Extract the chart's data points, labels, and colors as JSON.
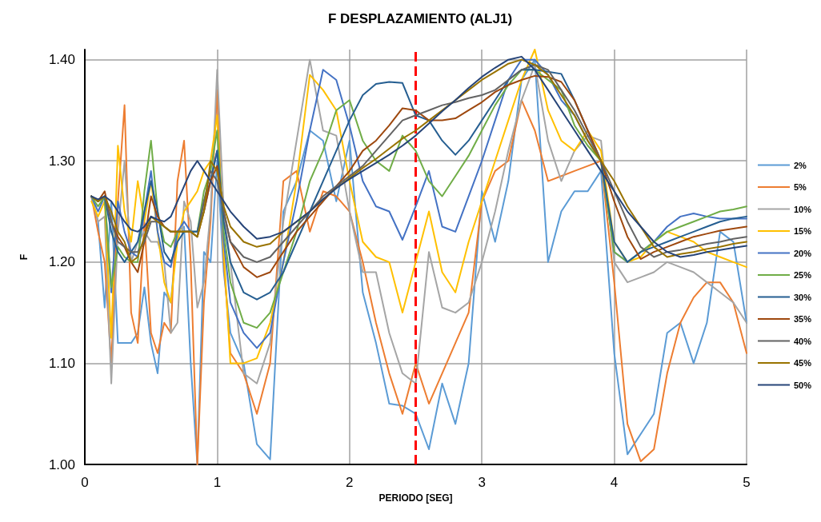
{
  "chart_data": {
    "type": "line",
    "title": "F DESPLAZAMIENTO (ALJ1)",
    "xlabel": "PERIODO [SEG]",
    "ylabel": "F",
    "x": [
      0.05,
      0.1,
      0.15,
      0.2,
      0.25,
      0.3,
      0.35,
      0.4,
      0.45,
      0.5,
      0.55,
      0.6,
      0.65,
      0.7,
      0.75,
      0.8,
      0.85,
      0.9,
      0.95,
      1.0,
      1.05,
      1.1,
      1.2,
      1.3,
      1.4,
      1.5,
      1.6,
      1.7,
      1.8,
      1.9,
      2.0,
      2.1,
      2.2,
      2.3,
      2.4,
      2.5,
      2.6,
      2.7,
      2.8,
      2.9,
      3.0,
      3.1,
      3.2,
      3.3,
      3.4,
      3.5,
      3.6,
      3.7,
      3.8,
      3.9,
      4.0,
      4.1,
      4.2,
      4.3,
      4.4,
      4.5,
      4.6,
      4.7,
      4.8,
      4.9,
      5.0
    ],
    "xlim": [
      0,
      5
    ],
    "xticks": [
      0,
      1,
      2,
      3,
      4,
      5
    ],
    "ylim": [
      1,
      1.41
    ],
    "yticks": [
      {
        "value": 1,
        "label": "1.00"
      },
      {
        "value": 1.1,
        "label": "1.10"
      },
      {
        "value": 1.2,
        "label": "1.20"
      },
      {
        "value": 1.3,
        "label": "1.30"
      },
      {
        "value": 1.4,
        "label": "1.40"
      }
    ],
    "grid": true,
    "legend": "right",
    "marker": "none",
    "line_style": "solid",
    "ref_lines": [
      {
        "axis": "x",
        "value": 2.5,
        "color": "#ff0000",
        "line_style": "dashed"
      }
    ],
    "series": [
      {
        "name": "2%",
        "color": "#5b9bd5",
        "values": [
          1.265,
          1.24,
          1.155,
          1.26,
          1.12,
          1.12,
          1.12,
          1.13,
          1.175,
          1.12,
          1.09,
          1.17,
          1.16,
          1.23,
          1.235,
          1.1,
          1.0,
          1.21,
          1.2,
          1.3,
          1.19,
          1.13,
          1.1,
          1.02,
          1.005,
          1.25,
          1.28,
          1.33,
          1.32,
          1.26,
          1.32,
          1.17,
          1.12,
          1.06,
          1.058,
          1.05,
          1.015,
          1.08,
          1.04,
          1.1,
          1.27,
          1.22,
          1.28,
          1.38,
          1.4,
          1.2,
          1.25,
          1.27,
          1.27,
          1.29,
          1.11,
          1.01,
          1.03,
          1.05,
          1.13,
          1.14,
          1.1,
          1.14,
          1.23,
          1.22,
          1.14
        ]
      },
      {
        "name": "5%",
        "color": "#ed7d31",
        "values": [
          1.265,
          1.23,
          1.2,
          1.1,
          1.26,
          1.355,
          1.15,
          1.12,
          1.24,
          1.13,
          1.11,
          1.14,
          1.13,
          1.28,
          1.32,
          1.2,
          1.0,
          1.16,
          1.24,
          1.37,
          1.2,
          1.11,
          1.09,
          1.05,
          1.1,
          1.28,
          1.29,
          1.23,
          1.27,
          1.265,
          1.25,
          1.2,
          1.14,
          1.09,
          1.05,
          1.1,
          1.06,
          1.09,
          1.12,
          1.15,
          1.26,
          1.29,
          1.3,
          1.36,
          1.33,
          1.28,
          1.285,
          1.29,
          1.295,
          1.3,
          1.18,
          1.04,
          1.003,
          1.015,
          1.09,
          1.14,
          1.165,
          1.18,
          1.18,
          1.16,
          1.11
        ]
      },
      {
        "name": "10%",
        "color": "#a5a5a5",
        "values": [
          1.265,
          1.24,
          1.245,
          1.08,
          1.23,
          1.3,
          1.2,
          1.22,
          1.23,
          1.22,
          1.22,
          1.2,
          1.13,
          1.14,
          1.26,
          1.24,
          1.155,
          1.18,
          1.25,
          1.39,
          1.25,
          1.2,
          1.09,
          1.08,
          1.12,
          1.24,
          1.32,
          1.4,
          1.33,
          1.325,
          1.25,
          1.19,
          1.19,
          1.13,
          1.09,
          1.08,
          1.21,
          1.155,
          1.15,
          1.16,
          1.2,
          1.25,
          1.31,
          1.36,
          1.395,
          1.32,
          1.28,
          1.31,
          1.325,
          1.32,
          1.2,
          1.18,
          1.185,
          1.19,
          1.2,
          1.195,
          1.19,
          1.18,
          1.17,
          1.16,
          1.14
        ]
      },
      {
        "name": "15%",
        "color": "#ffc000",
        "values": [
          1.26,
          1.245,
          1.26,
          1.125,
          1.315,
          1.25,
          1.22,
          1.28,
          1.24,
          1.28,
          1.23,
          1.18,
          1.16,
          1.22,
          1.25,
          1.26,
          1.27,
          1.29,
          1.3,
          1.345,
          1.21,
          1.1,
          1.1,
          1.105,
          1.14,
          1.2,
          1.28,
          1.385,
          1.37,
          1.35,
          1.28,
          1.22,
          1.205,
          1.2,
          1.15,
          1.2,
          1.25,
          1.19,
          1.17,
          1.22,
          1.26,
          1.3,
          1.34,
          1.38,
          1.41,
          1.35,
          1.32,
          1.31,
          1.33,
          1.31,
          1.22,
          1.2,
          1.205,
          1.22,
          1.23,
          1.225,
          1.22,
          1.21,
          1.205,
          1.2,
          1.195
        ]
      },
      {
        "name": "20%",
        "color": "#4472c4",
        "values": [
          1.265,
          1.25,
          1.265,
          1.17,
          1.26,
          1.23,
          1.21,
          1.205,
          1.25,
          1.29,
          1.23,
          1.2,
          1.195,
          1.23,
          1.24,
          1.23,
          1.23,
          1.25,
          1.28,
          1.31,
          1.22,
          1.16,
          1.13,
          1.115,
          1.13,
          1.2,
          1.26,
          1.33,
          1.39,
          1.38,
          1.335,
          1.28,
          1.255,
          1.25,
          1.222,
          1.255,
          1.29,
          1.235,
          1.23,
          1.265,
          1.3,
          1.34,
          1.38,
          1.4,
          1.4,
          1.385,
          1.36,
          1.345,
          1.32,
          1.3,
          1.21,
          1.2,
          1.21,
          1.22,
          1.235,
          1.245,
          1.248,
          1.245,
          1.243,
          1.243,
          1.243
        ]
      },
      {
        "name": "25%",
        "color": "#70ad47",
        "values": [
          1.265,
          1.255,
          1.265,
          1.175,
          1.215,
          1.205,
          1.2,
          1.2,
          1.27,
          1.32,
          1.25,
          1.22,
          1.215,
          1.23,
          1.23,
          1.23,
          1.23,
          1.27,
          1.29,
          1.33,
          1.23,
          1.18,
          1.14,
          1.135,
          1.15,
          1.19,
          1.23,
          1.28,
          1.31,
          1.35,
          1.36,
          1.32,
          1.3,
          1.29,
          1.325,
          1.31,
          1.28,
          1.265,
          1.285,
          1.305,
          1.33,
          1.355,
          1.375,
          1.39,
          1.39,
          1.38,
          1.37,
          1.335,
          1.315,
          1.3,
          1.21,
          1.2,
          1.21,
          1.22,
          1.23,
          1.235,
          1.24,
          1.245,
          1.25,
          1.252,
          1.255
        ]
      },
      {
        "name": "30%",
        "color": "#255e91",
        "values": [
          1.265,
          1.26,
          1.265,
          1.23,
          1.21,
          1.2,
          1.21,
          1.22,
          1.25,
          1.28,
          1.25,
          1.21,
          1.2,
          1.22,
          1.23,
          1.23,
          1.23,
          1.26,
          1.28,
          1.31,
          1.24,
          1.2,
          1.17,
          1.163,
          1.17,
          1.19,
          1.22,
          1.25,
          1.28,
          1.31,
          1.34,
          1.365,
          1.376,
          1.378,
          1.377,
          1.345,
          1.34,
          1.32,
          1.306,
          1.32,
          1.34,
          1.36,
          1.38,
          1.39,
          1.39,
          1.388,
          1.386,
          1.36,
          1.33,
          1.3,
          1.22,
          1.2,
          1.21,
          1.215,
          1.22,
          1.225,
          1.23,
          1.235,
          1.24,
          1.243,
          1.245
        ]
      },
      {
        "name": "35%",
        "color": "#9e480e",
        "values": [
          1.265,
          1.26,
          1.27,
          1.24,
          1.225,
          1.215,
          1.2,
          1.19,
          1.22,
          1.265,
          1.245,
          1.235,
          1.23,
          1.23,
          1.23,
          1.23,
          1.225,
          1.25,
          1.28,
          1.295,
          1.25,
          1.22,
          1.195,
          1.185,
          1.19,
          1.21,
          1.23,
          1.245,
          1.26,
          1.275,
          1.29,
          1.31,
          1.32,
          1.335,
          1.352,
          1.35,
          1.34,
          1.34,
          1.342,
          1.35,
          1.358,
          1.368,
          1.375,
          1.38,
          1.384,
          1.383,
          1.378,
          1.36,
          1.33,
          1.3,
          1.26,
          1.225,
          1.203,
          1.21,
          1.215,
          1.22,
          1.225,
          1.228,
          1.231,
          1.233,
          1.235
        ]
      },
      {
        "name": "40%",
        "color": "#636363",
        "values": [
          1.265,
          1.26,
          1.265,
          1.24,
          1.22,
          1.215,
          1.21,
          1.21,
          1.22,
          1.24,
          1.24,
          1.235,
          1.23,
          1.23,
          1.23,
          1.23,
          1.225,
          1.26,
          1.29,
          1.28,
          1.25,
          1.22,
          1.205,
          1.2,
          1.205,
          1.22,
          1.235,
          1.25,
          1.265,
          1.275,
          1.285,
          1.295,
          1.31,
          1.325,
          1.34,
          1.345,
          1.35,
          1.355,
          1.358,
          1.362,
          1.365,
          1.37,
          1.38,
          1.39,
          1.395,
          1.39,
          1.37,
          1.35,
          1.325,
          1.3,
          1.27,
          1.24,
          1.215,
          1.205,
          1.21,
          1.212,
          1.215,
          1.218,
          1.22,
          1.223,
          1.225
        ]
      },
      {
        "name": "45%",
        "color": "#997300",
        "values": [
          1.265,
          1.26,
          1.265,
          1.25,
          1.23,
          1.22,
          1.2,
          1.205,
          1.225,
          1.245,
          1.24,
          1.235,
          1.23,
          1.23,
          1.23,
          1.23,
          1.225,
          1.25,
          1.3,
          1.29,
          1.255,
          1.235,
          1.22,
          1.215,
          1.218,
          1.23,
          1.24,
          1.25,
          1.262,
          1.273,
          1.283,
          1.293,
          1.302,
          1.312,
          1.322,
          1.33,
          1.34,
          1.35,
          1.36,
          1.37,
          1.38,
          1.388,
          1.396,
          1.4,
          1.395,
          1.385,
          1.365,
          1.345,
          1.32,
          1.3,
          1.28,
          1.255,
          1.235,
          1.215,
          1.205,
          1.208,
          1.21,
          1.213,
          1.215,
          1.218,
          1.22
        ]
      },
      {
        "name": "50%",
        "color": "#264478",
        "values": [
          1.265,
          1.262,
          1.265,
          1.26,
          1.25,
          1.24,
          1.232,
          1.23,
          1.235,
          1.245,
          1.242,
          1.24,
          1.245,
          1.26,
          1.275,
          1.29,
          1.3,
          1.29,
          1.28,
          1.27,
          1.26,
          1.25,
          1.235,
          1.223,
          1.225,
          1.23,
          1.24,
          1.25,
          1.262,
          1.273,
          1.282,
          1.29,
          1.298,
          1.306,
          1.315,
          1.325,
          1.337,
          1.349,
          1.36,
          1.372,
          1.383,
          1.392,
          1.4,
          1.403,
          1.39,
          1.37,
          1.35,
          1.33,
          1.31,
          1.29,
          1.27,
          1.25,
          1.235,
          1.22,
          1.21,
          1.205,
          1.207,
          1.21,
          1.212,
          1.214,
          1.216
        ]
      }
    ]
  }
}
